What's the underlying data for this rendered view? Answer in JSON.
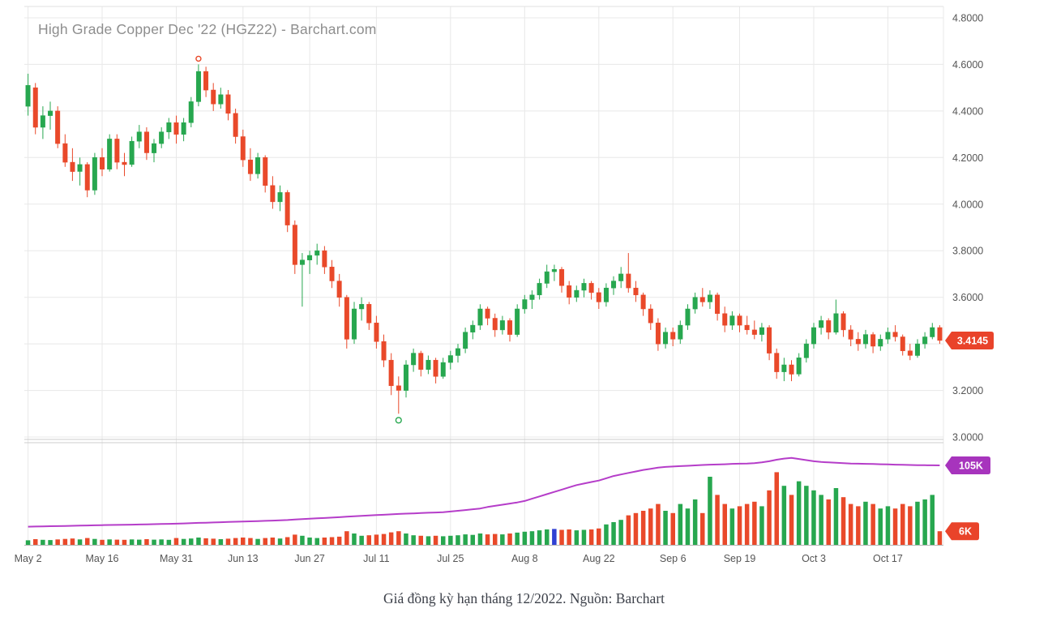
{
  "header": {
    "title": "High Grade Copper Dec '22 (HGZ22) - Barchart.com"
  },
  "caption": "Giá đồng kỳ hạn tháng 12/2022. Nguồn: Barchart",
  "colors": {
    "up": "#27a74f",
    "down": "#e9492a",
    "oi_line": "#b53dc9",
    "oi_badge": "#a734bd",
    "price_badge": "#e9432a",
    "vol_badge": "#e9432a",
    "vol_highlight": "#2f3fd3",
    "grid": "#e8e8e8",
    "divider": "#cccccc",
    "axis_line": "#b5b5b5",
    "axis_text": "#555555"
  },
  "chart_data": {
    "type": "candlestick",
    "title": "High Grade Copper Dec '22 (HGZ22) - Barchart.com",
    "price_axis_range": [
      3.0,
      4.8
    ],
    "volume_axis_max_k": 45,
    "oi_axis_max_k": 135,
    "last_price_badge": "3.4145",
    "oi_badge_label": "105K",
    "vol_badge_label": "6K",
    "y_ticks": [
      {
        "value": 4.8,
        "label": "4.8000"
      },
      {
        "value": 4.6,
        "label": "4.6000"
      },
      {
        "value": 4.4,
        "label": "4.4000"
      },
      {
        "value": 4.2,
        "label": "4.2000"
      },
      {
        "value": 4.0,
        "label": "4.0000"
      },
      {
        "value": 3.8,
        "label": "3.8000"
      },
      {
        "value": 3.6,
        "label": "3.6000"
      },
      {
        "value": 3.4,
        "label": ""
      },
      {
        "value": 3.2,
        "label": "3.2000"
      },
      {
        "value": 3.0,
        "label": "3.0000"
      }
    ],
    "x_ticks": [
      {
        "index": 0,
        "label": "May 2"
      },
      {
        "index": 10,
        "label": "May 16"
      },
      {
        "index": 20,
        "label": "May 31"
      },
      {
        "index": 29,
        "label": "Jun 13"
      },
      {
        "index": 38,
        "label": "Jun 27"
      },
      {
        "index": 47,
        "label": "Jul 11"
      },
      {
        "index": 57,
        "label": "Jul 25"
      },
      {
        "index": 67,
        "label": "Aug 8"
      },
      {
        "index": 77,
        "label": "Aug 22"
      },
      {
        "index": 87,
        "label": "Sep 6"
      },
      {
        "index": 96,
        "label": "Sep 19"
      },
      {
        "index": 106,
        "label": "Oct 3"
      },
      {
        "index": 116,
        "label": "Oct 17"
      }
    ],
    "markers": [
      {
        "type": "contract-high",
        "index": 23
      },
      {
        "type": "contract-low",
        "index": 50
      }
    ],
    "volume_highlight": {
      "index": 71
    },
    "series_note": "candles: [open, high, low, close, volume_k, open_interest_k]",
    "candles": [
      [
        4.42,
        4.56,
        4.38,
        4.51,
        2.0,
        24.0
      ],
      [
        4.5,
        4.52,
        4.3,
        4.33,
        2.5,
        24.2
      ],
      [
        4.33,
        4.42,
        4.28,
        4.38,
        2.2,
        24.4
      ],
      [
        4.38,
        4.44,
        4.32,
        4.4,
        2.1,
        24.6
      ],
      [
        4.4,
        4.42,
        4.24,
        4.26,
        2.4,
        24.8
      ],
      [
        4.26,
        4.3,
        4.16,
        4.18,
        2.6,
        25.0
      ],
      [
        4.18,
        4.24,
        4.1,
        4.14,
        2.8,
        25.2
      ],
      [
        4.14,
        4.2,
        4.08,
        4.17,
        2.4,
        25.4
      ],
      [
        4.17,
        4.18,
        4.03,
        4.06,
        3.0,
        25.6
      ],
      [
        4.06,
        4.22,
        4.04,
        4.2,
        2.6,
        25.8
      ],
      [
        4.2,
        4.24,
        4.12,
        4.15,
        2.2,
        26.0
      ],
      [
        4.15,
        4.3,
        4.14,
        4.28,
        2.4,
        26.2
      ],
      [
        4.28,
        4.3,
        4.15,
        4.18,
        2.3,
        26.4
      ],
      [
        4.18,
        4.22,
        4.12,
        4.17,
        2.2,
        26.5
      ],
      [
        4.17,
        4.29,
        4.16,
        4.27,
        2.4,
        26.7
      ],
      [
        4.27,
        4.34,
        4.24,
        4.31,
        2.3,
        26.9
      ],
      [
        4.31,
        4.33,
        4.19,
        4.22,
        2.5,
        27.1
      ],
      [
        4.22,
        4.28,
        4.18,
        4.26,
        2.3,
        27.3
      ],
      [
        4.26,
        4.33,
        4.24,
        4.31,
        2.4,
        27.5
      ],
      [
        4.31,
        4.37,
        4.28,
        4.35,
        2.2,
        27.7
      ],
      [
        4.35,
        4.38,
        4.26,
        4.3,
        3.0,
        28.0
      ],
      [
        4.3,
        4.37,
        4.27,
        4.35,
        2.6,
        28.3
      ],
      [
        4.35,
        4.46,
        4.33,
        4.44,
        2.8,
        28.6
      ],
      [
        4.44,
        4.6,
        4.42,
        4.57,
        3.2,
        29.0
      ],
      [
        4.57,
        4.59,
        4.46,
        4.49,
        2.9,
        29.3
      ],
      [
        4.49,
        4.52,
        4.4,
        4.43,
        2.7,
        29.6
      ],
      [
        4.43,
        4.5,
        4.41,
        4.47,
        2.5,
        29.9
      ],
      [
        4.47,
        4.49,
        4.36,
        4.39,
        2.7,
        30.2
      ],
      [
        4.39,
        4.41,
        4.26,
        4.29,
        3.0,
        30.5
      ],
      [
        4.29,
        4.32,
        4.16,
        4.19,
        3.2,
        30.8
      ],
      [
        4.19,
        4.24,
        4.1,
        4.13,
        3.0,
        31.1
      ],
      [
        4.13,
        4.22,
        4.11,
        4.2,
        2.6,
        31.4
      ],
      [
        4.2,
        4.21,
        4.05,
        4.08,
        3.0,
        31.7
      ],
      [
        4.08,
        4.12,
        3.98,
        4.01,
        3.2,
        32.0
      ],
      [
        4.01,
        4.08,
        3.97,
        4.05,
        2.8,
        32.4
      ],
      [
        4.05,
        4.06,
        3.88,
        3.91,
        3.4,
        32.8
      ],
      [
        3.91,
        3.93,
        3.7,
        3.74,
        4.5,
        33.4
      ],
      [
        3.74,
        3.79,
        3.56,
        3.76,
        4.0,
        34.0
      ],
      [
        3.76,
        3.8,
        3.7,
        3.78,
        3.2,
        34.5
      ],
      [
        3.78,
        3.83,
        3.74,
        3.8,
        3.0,
        35.0
      ],
      [
        3.8,
        3.82,
        3.7,
        3.73,
        3.2,
        35.5
      ],
      [
        3.73,
        3.76,
        3.64,
        3.67,
        3.4,
        36.0
      ],
      [
        3.67,
        3.7,
        3.56,
        3.6,
        3.6,
        36.5
      ],
      [
        3.6,
        3.61,
        3.38,
        3.42,
        6.0,
        37.2
      ],
      [
        3.42,
        3.58,
        3.4,
        3.55,
        5.0,
        37.8
      ],
      [
        3.55,
        3.6,
        3.5,
        3.57,
        4.0,
        38.3
      ],
      [
        3.57,
        3.58,
        3.46,
        3.49,
        4.2,
        38.8
      ],
      [
        3.49,
        3.52,
        3.38,
        3.41,
        4.5,
        39.3
      ],
      [
        3.41,
        3.44,
        3.3,
        3.33,
        4.8,
        39.8
      ],
      [
        3.33,
        3.36,
        3.18,
        3.22,
        5.5,
        40.3
      ],
      [
        3.22,
        3.26,
        3.1,
        3.2,
        6.0,
        40.8
      ],
      [
        3.2,
        3.33,
        3.17,
        3.31,
        5.0,
        41.2
      ],
      [
        3.31,
        3.38,
        3.28,
        3.36,
        4.2,
        41.6
      ],
      [
        3.36,
        3.37,
        3.26,
        3.29,
        4.0,
        42.0
      ],
      [
        3.29,
        3.35,
        3.27,
        3.33,
        3.8,
        42.4
      ],
      [
        3.33,
        3.34,
        3.23,
        3.26,
        4.0,
        42.8
      ],
      [
        3.26,
        3.34,
        3.25,
        3.32,
        3.8,
        43.2
      ],
      [
        3.32,
        3.37,
        3.29,
        3.35,
        4.0,
        44.0
      ],
      [
        3.35,
        3.4,
        3.32,
        3.38,
        4.2,
        45.0
      ],
      [
        3.38,
        3.47,
        3.36,
        3.45,
        4.6,
        46.0
      ],
      [
        3.45,
        3.5,
        3.42,
        3.48,
        4.4,
        47.0
      ],
      [
        3.48,
        3.57,
        3.46,
        3.55,
        5.0,
        48.0
      ],
      [
        3.55,
        3.56,
        3.48,
        3.51,
        4.6,
        50.0
      ],
      [
        3.51,
        3.53,
        3.43,
        3.46,
        4.8,
        51.5
      ],
      [
        3.46,
        3.52,
        3.44,
        3.5,
        4.6,
        53.0
      ],
      [
        3.5,
        3.51,
        3.41,
        3.44,
        5.0,
        54.5
      ],
      [
        3.44,
        3.57,
        3.43,
        3.55,
        5.4,
        56.0
      ],
      [
        3.55,
        3.61,
        3.53,
        3.59,
        5.8,
        58.0
      ],
      [
        3.59,
        3.63,
        3.55,
        3.61,
        6.0,
        61.0
      ],
      [
        3.61,
        3.68,
        3.59,
        3.66,
        6.4,
        64.0
      ],
      [
        3.66,
        3.74,
        3.64,
        3.71,
        6.8,
        67.0
      ],
      [
        3.71,
        3.74,
        3.67,
        3.72,
        7.0,
        70.0
      ],
      [
        3.72,
        3.73,
        3.62,
        3.65,
        6.6,
        73.0
      ],
      [
        3.65,
        3.67,
        3.57,
        3.6,
        6.8,
        76.0
      ],
      [
        3.6,
        3.65,
        3.58,
        3.63,
        6.4,
        79.0
      ],
      [
        3.63,
        3.68,
        3.6,
        3.66,
        6.6,
        81.0
      ],
      [
        3.66,
        3.67,
        3.59,
        3.62,
        6.8,
        83.0
      ],
      [
        3.62,
        3.64,
        3.55,
        3.58,
        7.2,
        85.0
      ],
      [
        3.58,
        3.66,
        3.56,
        3.64,
        9.0,
        88.0
      ],
      [
        3.64,
        3.69,
        3.61,
        3.67,
        10.0,
        91.0
      ],
      [
        3.67,
        3.73,
        3.64,
        3.7,
        11.0,
        93.0
      ],
      [
        3.7,
        3.79,
        3.62,
        3.64,
        13.0,
        95.0
      ],
      [
        3.64,
        3.67,
        3.58,
        3.61,
        14.0,
        97.0
      ],
      [
        3.61,
        3.62,
        3.52,
        3.55,
        15.0,
        99.0
      ],
      [
        3.55,
        3.57,
        3.46,
        3.49,
        16.0,
        100.5
      ],
      [
        3.49,
        3.51,
        3.37,
        3.4,
        18.0,
        102.0
      ],
      [
        3.4,
        3.47,
        3.38,
        3.45,
        15.0,
        103.0
      ],
      [
        3.45,
        3.47,
        3.39,
        3.42,
        14.0,
        103.5
      ],
      [
        3.42,
        3.5,
        3.4,
        3.48,
        18.0,
        104.0
      ],
      [
        3.48,
        3.57,
        3.46,
        3.55,
        16.0,
        104.5
      ],
      [
        3.55,
        3.62,
        3.53,
        3.6,
        20.0,
        105.0
      ],
      [
        3.6,
        3.64,
        3.56,
        3.58,
        14.0,
        105.5
      ],
      [
        3.58,
        3.63,
        3.55,
        3.61,
        30.0,
        106.0
      ],
      [
        3.61,
        3.62,
        3.5,
        3.53,
        22.0,
        106.2
      ],
      [
        3.53,
        3.56,
        3.45,
        3.48,
        18.0,
        106.5
      ],
      [
        3.48,
        3.54,
        3.46,
        3.52,
        16.0,
        107.0
      ],
      [
        3.52,
        3.53,
        3.45,
        3.48,
        17.0,
        107.2
      ],
      [
        3.48,
        3.52,
        3.44,
        3.46,
        18.0,
        107.5
      ],
      [
        3.46,
        3.5,
        3.42,
        3.44,
        19.0,
        108.0
      ],
      [
        3.44,
        3.49,
        3.41,
        3.47,
        17.0,
        109.0
      ],
      [
        3.47,
        3.48,
        3.33,
        3.36,
        24.0,
        110.5
      ],
      [
        3.36,
        3.38,
        3.25,
        3.28,
        32.0,
        112.5
      ],
      [
        3.28,
        3.34,
        3.24,
        3.31,
        26.0,
        114.0
      ],
      [
        3.31,
        3.33,
        3.24,
        3.27,
        22.0,
        115.0
      ],
      [
        3.27,
        3.36,
        3.26,
        3.34,
        28.0,
        113.5
      ],
      [
        3.34,
        3.42,
        3.32,
        3.4,
        26.0,
        112.0
      ],
      [
        3.4,
        3.49,
        3.38,
        3.47,
        24.0,
        110.5
      ],
      [
        3.47,
        3.52,
        3.44,
        3.5,
        22.0,
        109.5
      ],
      [
        3.5,
        3.51,
        3.42,
        3.45,
        20.0,
        109.0
      ],
      [
        3.45,
        3.59,
        3.44,
        3.53,
        25.0,
        108.5
      ],
      [
        3.53,
        3.54,
        3.43,
        3.46,
        21.0,
        108.0
      ],
      [
        3.46,
        3.48,
        3.39,
        3.42,
        18.0,
        107.5
      ],
      [
        3.42,
        3.45,
        3.37,
        3.4,
        17.0,
        107.3
      ],
      [
        3.4,
        3.46,
        3.38,
        3.44,
        19.0,
        107.0
      ],
      [
        3.44,
        3.45,
        3.36,
        3.39,
        18.0,
        106.8
      ],
      [
        3.39,
        3.44,
        3.37,
        3.42,
        16.0,
        106.5
      ],
      [
        3.42,
        3.47,
        3.4,
        3.45,
        17.0,
        106.3
      ],
      [
        3.45,
        3.48,
        3.41,
        3.43,
        16.0,
        106.0
      ],
      [
        3.43,
        3.44,
        3.35,
        3.37,
        18.0,
        105.8
      ],
      [
        3.37,
        3.4,
        3.33,
        3.35,
        17.0,
        105.5
      ],
      [
        3.35,
        3.42,
        3.34,
        3.4,
        19.0,
        105.3
      ],
      [
        3.4,
        3.45,
        3.38,
        3.43,
        20.0,
        105.2
      ],
      [
        3.43,
        3.49,
        3.42,
        3.47,
        22.0,
        105.1
      ],
      [
        3.47,
        3.48,
        3.4,
        3.4145,
        6.0,
        105.0
      ]
    ]
  }
}
